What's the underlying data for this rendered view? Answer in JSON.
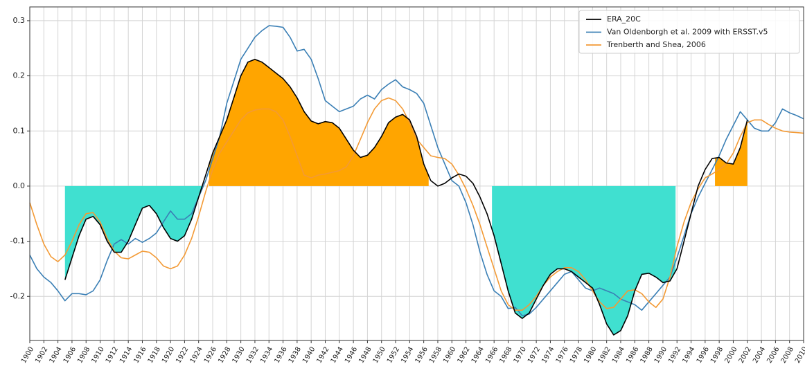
{
  "chart_data": {
    "type": "line",
    "x": [
      1900,
      1901,
      1902,
      1903,
      1904,
      1905,
      1906,
      1907,
      1908,
      1909,
      1910,
      1911,
      1912,
      1913,
      1914,
      1915,
      1916,
      1917,
      1918,
      1919,
      1920,
      1921,
      1922,
      1923,
      1924,
      1925,
      1926,
      1927,
      1928,
      1929,
      1930,
      1931,
      1932,
      1933,
      1934,
      1935,
      1936,
      1937,
      1938,
      1939,
      1940,
      1941,
      1942,
      1943,
      1944,
      1945,
      1946,
      1947,
      1948,
      1949,
      1950,
      1951,
      1952,
      1953,
      1954,
      1955,
      1956,
      1957,
      1958,
      1959,
      1960,
      1961,
      1962,
      1963,
      1964,
      1965,
      1966,
      1967,
      1968,
      1969,
      1970,
      1971,
      1972,
      1973,
      1974,
      1975,
      1976,
      1977,
      1978,
      1979,
      1980,
      1981,
      1982,
      1983,
      1984,
      1985,
      1986,
      1987,
      1988,
      1989,
      1990,
      1991,
      1992,
      1993,
      1994,
      1995,
      1996,
      1997,
      1998,
      1999,
      2000,
      2001,
      2002,
      2003,
      2004,
      2005,
      2006,
      2007,
      2008,
      2009,
      2010
    ],
    "series": [
      {
        "name": "ERA_20C",
        "color": "#000000",
        "values": [
          null,
          null,
          null,
          null,
          null,
          -0.17,
          -0.13,
          -0.09,
          -0.06,
          -0.055,
          -0.07,
          -0.1,
          -0.12,
          -0.12,
          -0.1,
          -0.07,
          -0.04,
          -0.035,
          -0.05,
          -0.075,
          -0.095,
          -0.1,
          -0.09,
          -0.06,
          -0.02,
          0.02,
          0.06,
          0.09,
          0.12,
          0.16,
          0.2,
          0.225,
          0.23,
          0.225,
          0.215,
          0.205,
          0.195,
          0.18,
          0.16,
          0.135,
          0.118,
          0.113,
          0.117,
          0.115,
          0.105,
          0.085,
          0.065,
          0.052,
          0.056,
          0.07,
          0.09,
          0.115,
          0.125,
          0.13,
          0.12,
          0.09,
          0.04,
          0.01,
          0.0,
          0.005,
          0.015,
          0.022,
          0.018,
          0.005,
          -0.02,
          -0.05,
          -0.09,
          -0.14,
          -0.19,
          -0.23,
          -0.24,
          -0.23,
          -0.205,
          -0.18,
          -0.16,
          -0.15,
          -0.15,
          -0.155,
          -0.165,
          -0.175,
          -0.185,
          -0.215,
          -0.25,
          -0.27,
          -0.262,
          -0.235,
          -0.19,
          -0.16,
          -0.158,
          -0.165,
          -0.175,
          -0.172,
          -0.15,
          -0.1,
          -0.05,
          0.0,
          0.03,
          0.05,
          0.052,
          0.042,
          0.04,
          0.07,
          0.12,
          null,
          null,
          null,
          null,
          null,
          null,
          null,
          null
        ]
      },
      {
        "name": "Van Oldenborgh et al. 2009 with ERSST.v5",
        "color": "#3a7fb5",
        "values": [
          -0.125,
          -0.15,
          -0.165,
          -0.175,
          -0.19,
          -0.208,
          -0.195,
          -0.195,
          -0.197,
          -0.19,
          -0.17,
          -0.135,
          -0.105,
          -0.097,
          -0.105,
          -0.095,
          -0.102,
          -0.095,
          -0.085,
          -0.065,
          -0.045,
          -0.06,
          -0.06,
          -0.05,
          -0.02,
          0.01,
          0.05,
          0.09,
          0.15,
          0.19,
          0.23,
          0.25,
          0.27,
          0.282,
          0.291,
          0.29,
          0.288,
          0.27,
          0.245,
          0.248,
          0.23,
          0.195,
          0.155,
          0.145,
          0.135,
          0.14,
          0.145,
          0.158,
          0.165,
          0.158,
          0.175,
          0.185,
          0.193,
          0.18,
          0.175,
          0.168,
          0.15,
          0.11,
          0.07,
          0.04,
          0.01,
          0.0,
          -0.03,
          -0.07,
          -0.12,
          -0.16,
          -0.19,
          -0.2,
          -0.222,
          -0.22,
          -0.235,
          -0.232,
          -0.22,
          -0.205,
          -0.19,
          -0.175,
          -0.16,
          -0.155,
          -0.17,
          -0.185,
          -0.19,
          -0.185,
          -0.19,
          -0.195,
          -0.205,
          -0.21,
          -0.215,
          -0.225,
          -0.21,
          -0.195,
          -0.18,
          -0.165,
          -0.13,
          -0.09,
          -0.05,
          -0.02,
          0.005,
          0.03,
          0.055,
          0.085,
          0.11,
          0.135,
          0.12,
          0.105,
          0.1,
          0.1,
          0.115,
          0.14,
          0.133,
          0.128,
          0.122
        ]
      },
      {
        "name": "Trenberth and Shea, 2006",
        "color": "#f39a35",
        "values": [
          -0.03,
          -0.07,
          -0.105,
          -0.128,
          -0.137,
          -0.125,
          -0.1,
          -0.07,
          -0.05,
          -0.048,
          -0.065,
          -0.095,
          -0.118,
          -0.13,
          -0.132,
          -0.125,
          -0.118,
          -0.12,
          -0.13,
          -0.145,
          -0.15,
          -0.145,
          -0.125,
          -0.095,
          -0.055,
          -0.01,
          0.03,
          0.06,
          0.08,
          0.1,
          0.12,
          0.133,
          0.138,
          0.14,
          0.14,
          0.135,
          0.12,
          0.09,
          0.055,
          0.02,
          0.015,
          0.02,
          0.022,
          0.025,
          0.028,
          0.035,
          0.055,
          0.085,
          0.115,
          0.14,
          0.155,
          0.16,
          0.155,
          0.14,
          0.115,
          0.085,
          0.07,
          0.055,
          0.052,
          0.05,
          0.04,
          0.02,
          -0.005,
          -0.035,
          -0.07,
          -0.11,
          -0.15,
          -0.19,
          -0.215,
          -0.225,
          -0.225,
          -0.215,
          -0.2,
          -0.18,
          -0.165,
          -0.155,
          -0.148,
          -0.148,
          -0.155,
          -0.17,
          -0.19,
          -0.21,
          -0.222,
          -0.22,
          -0.205,
          -0.19,
          -0.188,
          -0.195,
          -0.21,
          -0.22,
          -0.205,
          -0.165,
          -0.11,
          -0.065,
          -0.03,
          -0.005,
          0.015,
          0.022,
          0.03,
          0.04,
          0.06,
          0.09,
          0.115,
          0.12,
          0.12,
          0.112,
          0.105,
          0.1,
          0.098,
          0.097,
          0.096
        ]
      }
    ],
    "fills": [
      {
        "x0": 1905,
        "x1": 1924.5,
        "color": "#40e0d0"
      },
      {
        "x0": 1925.5,
        "x1": 1956.7,
        "color": "#ffa500"
      },
      {
        "x0": 1965.7,
        "x1": 1991.8,
        "color": "#40e0d0"
      },
      {
        "x0": 1997.4,
        "x1": 2002,
        "color": "#ffa500"
      }
    ],
    "xlim": [
      1900,
      2010
    ],
    "ylim": [
      -0.28,
      0.325
    ],
    "xticks": [
      1900,
      1902,
      1904,
      1906,
      1908,
      1910,
      1912,
      1914,
      1916,
      1918,
      1920,
      1922,
      1924,
      1926,
      1928,
      1930,
      1932,
      1934,
      1936,
      1938,
      1940,
      1942,
      1944,
      1946,
      1948,
      1950,
      1952,
      1954,
      1956,
      1958,
      1960,
      1962,
      1964,
      1966,
      1968,
      1970,
      1972,
      1974,
      1976,
      1978,
      1980,
      1982,
      1984,
      1986,
      1988,
      1990,
      1992,
      1994,
      1996,
      1998,
      2000,
      2002,
      2004,
      2006,
      2008,
      2010
    ],
    "yticks": [
      -0.2,
      -0.1,
      {
        "value": 0,
        "label": "0.0"
      },
      0.1,
      0.2,
      0.3
    ],
    "grid": true,
    "legend": "upper right"
  }
}
